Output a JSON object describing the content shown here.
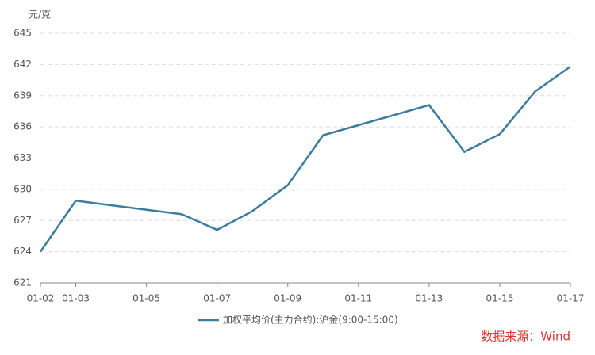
{
  "chart_data": {
    "type": "line",
    "y_unit": "元/克",
    "x": [
      2,
      3,
      6,
      7,
      8,
      9,
      10,
      13,
      14,
      15,
      16,
      17
    ],
    "series": [
      {
        "name": "加权平均价(主力合约):沪金(9:00-15:00)",
        "color": "#3a7d9c",
        "values": [
          624.0,
          628.9,
          627.6,
          626.1,
          627.9,
          630.4,
          635.2,
          638.1,
          633.6,
          635.3,
          639.4,
          641.8
        ]
      }
    ],
    "xlim": [
      2,
      17
    ],
    "xticks": [
      {
        "value": 2,
        "label": "01-02"
      },
      {
        "value": 3,
        "label": "01-03"
      },
      {
        "value": 5,
        "label": "01-05"
      },
      {
        "value": 7,
        "label": "01-07"
      },
      {
        "value": 9,
        "label": "01-09"
      },
      {
        "value": 11,
        "label": "01-11"
      },
      {
        "value": 13,
        "label": "01-13"
      },
      {
        "value": 15,
        "label": "01-15"
      },
      {
        "value": 17,
        "label": "01-17"
      }
    ],
    "ylim": [
      621,
      645
    ],
    "yticks": [
      621,
      624,
      627,
      630,
      633,
      636,
      639,
      642,
      645
    ],
    "grid": true,
    "source": "数据来源：Wind"
  }
}
